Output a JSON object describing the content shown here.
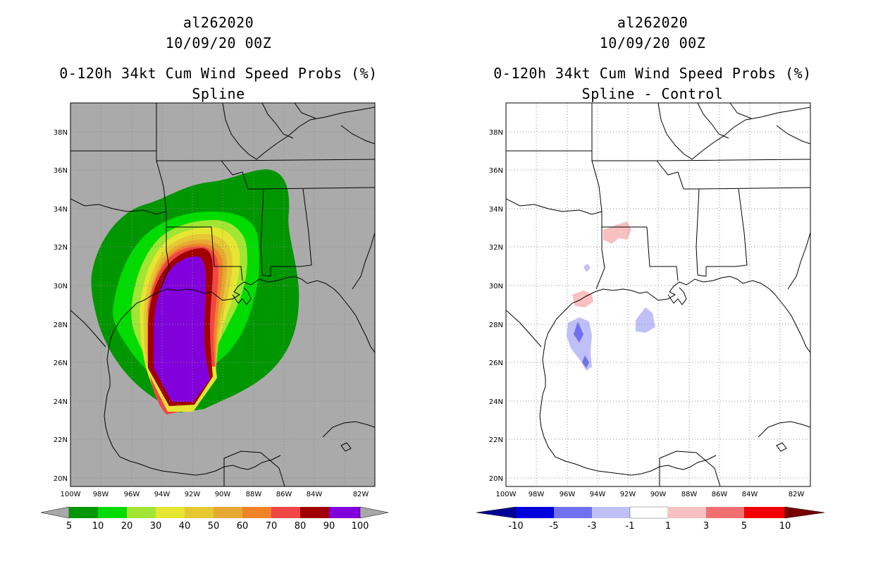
{
  "left_panel": {
    "storm_id": "al262020",
    "datetime": "10/09/20 00Z",
    "product": "0-120h 34kt Cum Wind Speed Probs (%)",
    "subtitle": "Spline",
    "colorbar": {
      "labels": [
        "5",
        "10",
        "20",
        "30",
        "40",
        "50",
        "60",
        "70",
        "80",
        "90",
        "100"
      ],
      "colors": [
        "#009600",
        "#00dc00",
        "#a0e632",
        "#e6e632",
        "#e6c832",
        "#e6aa32",
        "#f08228",
        "#f04646",
        "#a00000",
        "#8200dc"
      ],
      "arrow_color": "#a8a8a8"
    }
  },
  "right_panel": {
    "storm_id": "al262020",
    "datetime": "10/09/20 00Z",
    "product": "0-120h 34kt Cum Wind Speed Probs (%)",
    "subtitle": "Spline - Control",
    "colorbar": {
      "labels": [
        "-10",
        "-5",
        "-3",
        "-1",
        "1",
        "3",
        "5",
        "10"
      ],
      "colors": [
        "#0000dc",
        "#7070f0",
        "#c0c0f8",
        "#ffffff",
        "#f8c0c0",
        "#f07070",
        "#f00000"
      ],
      "arrow_low_color": "#000096",
      "arrow_high_color": "#780000"
    }
  },
  "axes": {
    "lat_labels": [
      "38N",
      "36N",
      "34N",
      "32N",
      "30N",
      "28N",
      "26N",
      "24N",
      "22N",
      "20N"
    ],
    "lon_labels": [
      "100W",
      "98W",
      "96W",
      "94W",
      "92W",
      "90W",
      "88W",
      "86W",
      "84W",
      "82W"
    ]
  },
  "colors": {
    "land_background": "#aaaaaa",
    "grid": "#8c8c8c",
    "coastline": "#000000"
  }
}
